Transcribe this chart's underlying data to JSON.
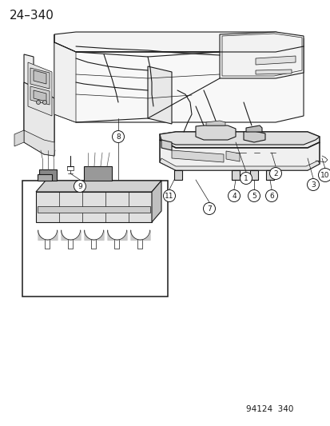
{
  "page_number": "24–340",
  "catalog_number": "94124  340",
  "bg_color": "#ffffff",
  "line_color": "#1a1a1a",
  "text_color": "#1a1a1a",
  "page_num_fontsize": 11,
  "catalog_fontsize": 7.5,
  "label_fontsize": 6.5,
  "label_circle_r": 7.5
}
